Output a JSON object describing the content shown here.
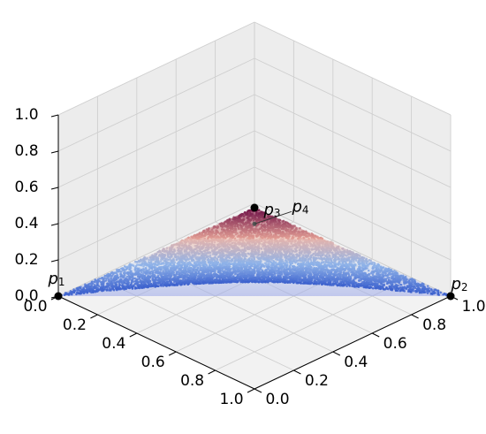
{
  "chart_data": {
    "type": "scatter",
    "projection": "3d-isometric",
    "title": "",
    "xlabel": "",
    "ylabel": "",
    "zlabel": "",
    "x_ticks": [
      "0.0",
      "0.2",
      "0.4",
      "0.6",
      "0.8",
      "1.0"
    ],
    "y_ticks": [
      "0.0",
      "0.2",
      "0.4",
      "0.6",
      "0.8",
      "1.0"
    ],
    "z_ticks": [
      "0.0",
      "0.2",
      "0.4",
      "0.6",
      "0.8",
      "1.0"
    ],
    "xlim": [
      0,
      1
    ],
    "ylim": [
      0,
      1
    ],
    "zlim": [
      0,
      1
    ],
    "grid": true,
    "colormap": [
      "#3a5fcd",
      "#8fb3e8",
      "#f4b3a0",
      "#7a1f4e"
    ],
    "marker_color": "#4a6fd4",
    "vertex_color": "#000000",
    "points": [
      {
        "label": "p",
        "subscript": "1",
        "x": 0,
        "y": 0,
        "z": 0
      },
      {
        "label": "p",
        "subscript": "2",
        "x": 1,
        "y": 1,
        "z": 0
      },
      {
        "label": "p",
        "subscript": "3",
        "x": 1,
        "y": 0,
        "z": 1
      },
      {
        "label": "p",
        "subscript": "4",
        "x": 0.55,
        "y": 0.45,
        "z": 0.45
      }
    ],
    "n_samples": 9000
  }
}
